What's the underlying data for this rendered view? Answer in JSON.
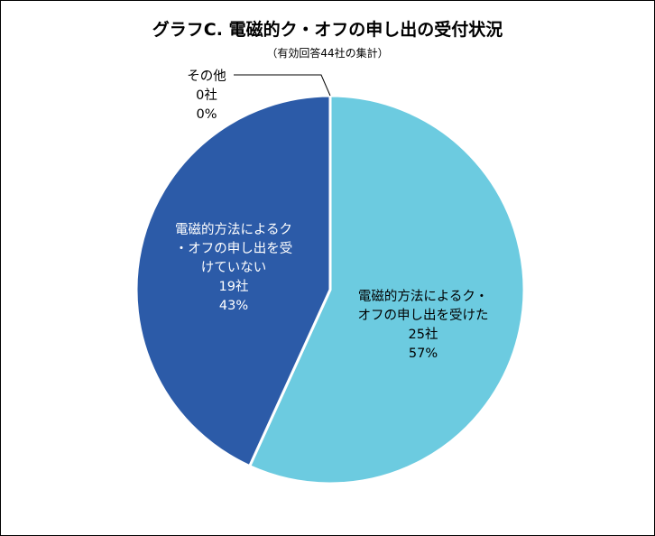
{
  "chart_data": {
    "type": "pie",
    "title": "グラフC. 電磁的ク・オフの申し出の受付状況",
    "subtitle": "（有効回答44社の集計）",
    "start_angle_deg": 0,
    "direction": "clockwise",
    "slices": [
      {
        "label_lines": [
          "電磁的方法によるク・",
          "オフの申し出を受けた"
        ],
        "count": "25社",
        "percent": "57%",
        "value": 25,
        "color": "#6ccbe0",
        "text_color": "#000000"
      },
      {
        "label_lines": [
          "電磁的方法によるク",
          "・オフの申し出を受",
          "けていない"
        ],
        "count": "19社",
        "percent": "43%",
        "value": 19,
        "color": "#2c5ba8",
        "text_color": "#ffffff"
      },
      {
        "label_lines": [
          "その他"
        ],
        "count": "0社",
        "percent": "0%",
        "value": 0,
        "color": "#a0a0a0",
        "text_color": "#000000"
      }
    ]
  }
}
